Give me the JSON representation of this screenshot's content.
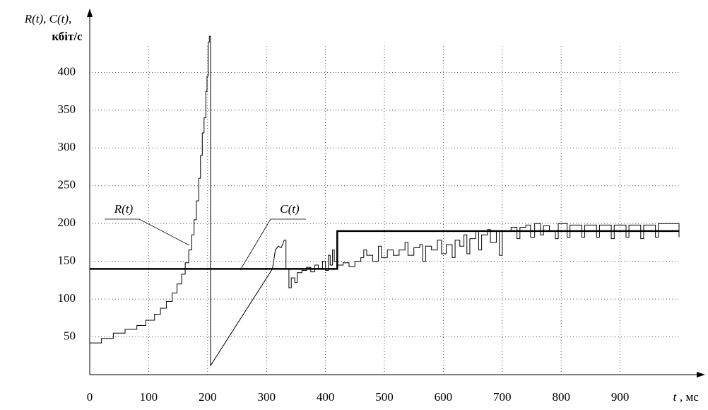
{
  "chart_data": {
    "type": "line",
    "y_label": "R(t), C(t),",
    "y_unit": "кбіт/с",
    "x_label": "t",
    "x_unit": ", мс",
    "xlim": [
      0,
      1000
    ],
    "ylim": [
      0,
      450
    ],
    "xticks": [
      0,
      100,
      200,
      300,
      400,
      500,
      600,
      700,
      800,
      900
    ],
    "yticks": [
      50,
      100,
      150,
      200,
      250,
      300,
      350,
      400
    ],
    "grid": true,
    "annotations": [
      "R(t)",
      "C(t)"
    ],
    "series": [
      {
        "name": "R(t)",
        "color": "#000000",
        "width": 1,
        "x": [
          0,
          20,
          20,
          40,
          40,
          60,
          60,
          80,
          80,
          95,
          95,
          110,
          110,
          120,
          120,
          130,
          130,
          140,
          140,
          148,
          148,
          156,
          156,
          162,
          162,
          168,
          168,
          173,
          173,
          177,
          177,
          181,
          181,
          185,
          185,
          188,
          188,
          191,
          191,
          194,
          194,
          197,
          197,
          199,
          199,
          201,
          201,
          203,
          203,
          205,
          205,
          310,
          315,
          320,
          325,
          330,
          333,
          333,
          338,
          338,
          342,
          342,
          348,
          348,
          352,
          352,
          360,
          360,
          368,
          368,
          375,
          375,
          382,
          382,
          388,
          388,
          395,
          395,
          400,
          400,
          405,
          405,
          408,
          408,
          412,
          412,
          415,
          415,
          420,
          420,
          430,
          430,
          440,
          440,
          450,
          450,
          460,
          460,
          465,
          465,
          470,
          470,
          480,
          480,
          490,
          490,
          495,
          495,
          505,
          505,
          515,
          515,
          525,
          525,
          535,
          535,
          540,
          540,
          550,
          550,
          560,
          560,
          565,
          565,
          570,
          570,
          580,
          580,
          590,
          590,
          597,
          597,
          605,
          605,
          615,
          615,
          620,
          620,
          628,
          628,
          635,
          635,
          640,
          640,
          645,
          645,
          655,
          655,
          660,
          660,
          665,
          665,
          675,
          675,
          680,
          680,
          690,
          690,
          695,
          695,
          700,
          700,
          715,
          715,
          725,
          725,
          730,
          730,
          740,
          740,
          748,
          748,
          755,
          755,
          765,
          765,
          770,
          770,
          780,
          780,
          790,
          790,
          795,
          795,
          810,
          810,
          815,
          815,
          835,
          835,
          840,
          840,
          860,
          860,
          865,
          865,
          885,
          885,
          890,
          890,
          910,
          910,
          915,
          915,
          935,
          935,
          940,
          940,
          960,
          960,
          965,
          965,
          1000,
          1000
        ],
        "values": [
          42,
          42,
          48,
          48,
          55,
          55,
          60,
          60,
          65,
          65,
          72,
          72,
          80,
          80,
          88,
          88,
          97,
          97,
          108,
          108,
          120,
          120,
          133,
          133,
          148,
          148,
          165,
          165,
          185,
          185,
          205,
          205,
          230,
          230,
          260,
          260,
          290,
          290,
          320,
          320,
          340,
          340,
          375,
          375,
          395,
          395,
          440,
          440,
          448,
          448,
          12,
          140,
          165,
          170,
          168,
          178,
          178,
          140,
          140,
          115,
          115,
          128,
          128,
          122,
          122,
          135,
          135,
          138,
          138,
          142,
          142,
          136,
          136,
          145,
          145,
          140,
          140,
          150,
          150,
          138,
          138,
          158,
          158,
          145,
          145,
          165,
          165,
          150,
          150,
          145,
          145,
          148,
          148,
          143,
          143,
          150,
          150,
          155,
          155,
          165,
          165,
          158,
          158,
          150,
          150,
          170,
          170,
          155,
          155,
          165,
          165,
          158,
          158,
          165,
          165,
          175,
          175,
          158,
          158,
          168,
          168,
          172,
          172,
          150,
          150,
          170,
          170,
          165,
          165,
          178,
          178,
          160,
          160,
          172,
          172,
          155,
          155,
          178,
          178,
          170,
          170,
          185,
          185,
          160,
          160,
          180,
          180,
          190,
          190,
          165,
          165,
          185,
          185,
          192,
          192,
          175,
          175,
          190,
          190,
          158,
          158,
          190,
          190,
          195,
          195,
          180,
          180,
          195,
          195,
          198,
          198,
          182,
          182,
          200,
          200,
          185,
          185,
          197,
          197,
          190,
          190,
          180,
          180,
          200,
          200,
          182,
          182,
          198,
          198,
          182,
          182,
          198,
          198,
          182,
          182,
          198,
          198,
          180,
          180,
          198,
          198,
          182,
          182,
          198,
          198,
          180,
          180,
          198,
          198,
          182,
          182,
          200,
          200,
          182
        ]
      },
      {
        "name": "C(t)",
        "color": "#000000",
        "width": 2.5,
        "x": [
          0,
          420,
          420,
          1000
        ],
        "values": [
          140,
          140,
          190,
          190
        ]
      }
    ]
  }
}
